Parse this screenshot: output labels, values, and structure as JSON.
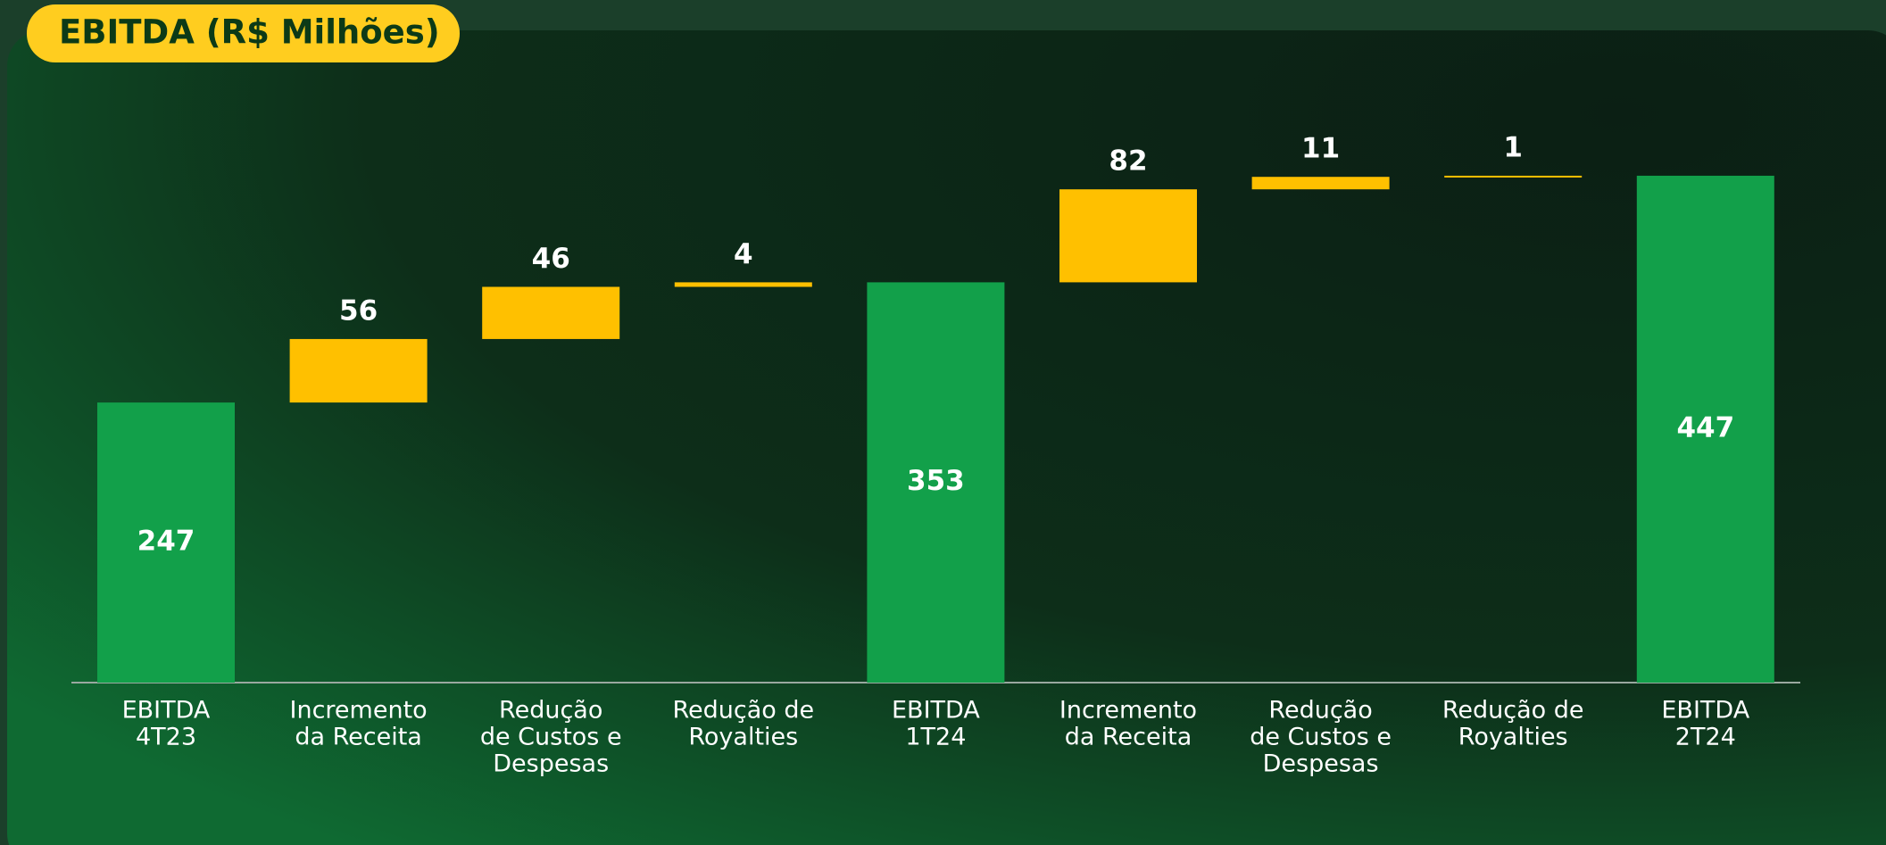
{
  "chart_data": {
    "type": "waterfall",
    "title": "EBITDA (R$ Milhões)",
    "categories": [
      [
        "EBITDA",
        "4T23"
      ],
      [
        "Incremento",
        "da Receita"
      ],
      [
        "Redução",
        "de Custos e",
        "Despesas"
      ],
      [
        "Redução de",
        "Royalties"
      ],
      [
        "EBITDA",
        "1T24"
      ],
      [
        "Incremento",
        "da Receita"
      ],
      [
        "Redução",
        "de Custos e",
        "Despesas"
      ],
      [
        "Redução de",
        "Royalties"
      ],
      [
        "EBITDA",
        "2T24"
      ]
    ],
    "values": [
      247,
      56,
      46,
      4,
      353,
      82,
      11,
      1,
      447
    ],
    "measures": [
      "total",
      "relative",
      "relative",
      "relative",
      "total",
      "relative",
      "relative",
      "relative",
      "total"
    ],
    "total_color": "#12a04a",
    "increase_color": "#ffc000",
    "ylim": [
      0,
      480
    ]
  }
}
